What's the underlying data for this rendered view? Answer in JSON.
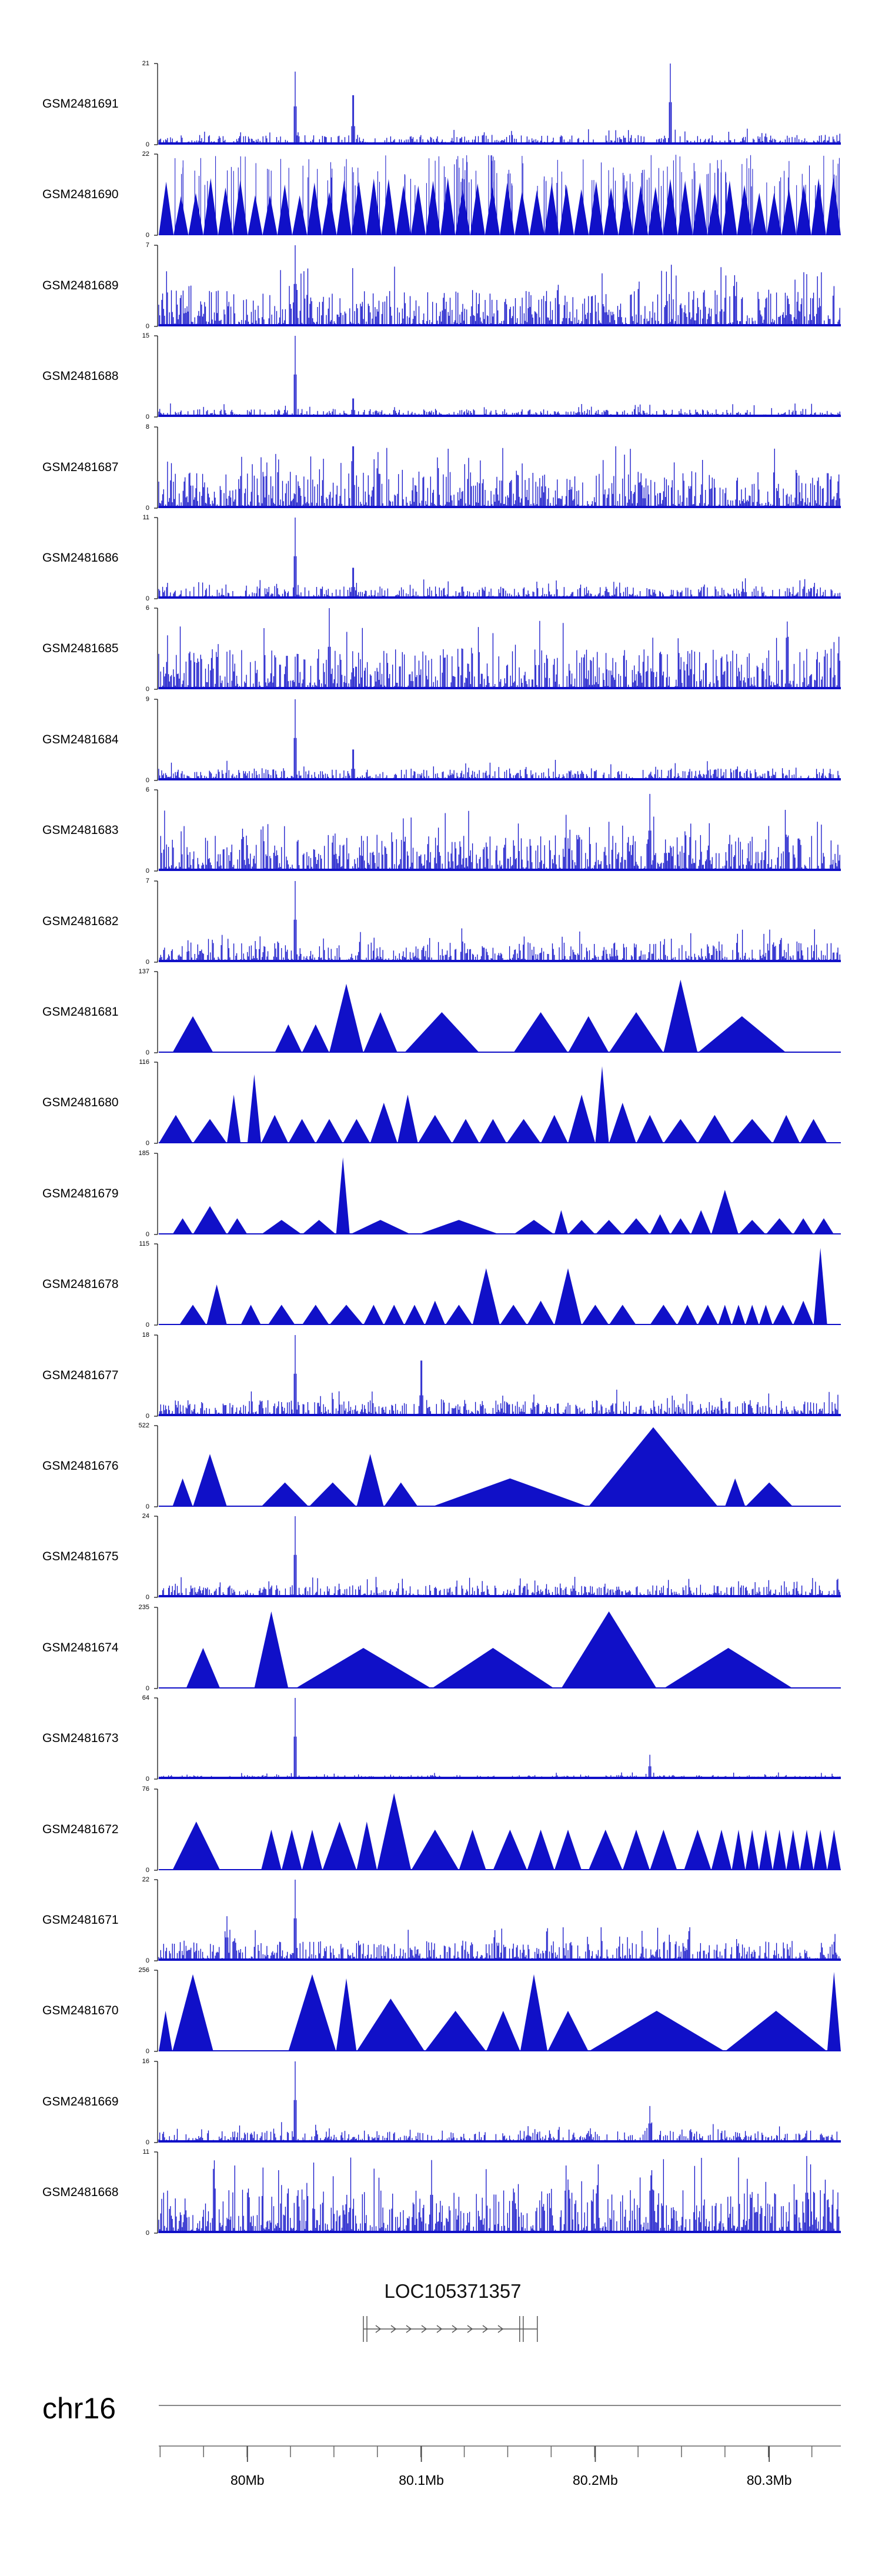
{
  "colors": {
    "signal": "#1010c8",
    "axis": "#000000",
    "gene": "#555555"
  },
  "tracks": [
    {
      "name": "GSM2481691",
      "max": 21,
      "style": "spikes",
      "peaks": [
        [
          0.2,
          0.9
        ],
        [
          0.285,
          0.8
        ],
        [
          0.75,
          1.0
        ]
      ],
      "level": 0.12
    },
    {
      "name": "GSM2481690",
      "max": 22,
      "style": "dense-tri",
      "level": 0.6
    },
    {
      "name": "GSM2481689",
      "max": 7,
      "style": "spikes",
      "peaks": [
        [
          0.2,
          1.0
        ]
      ],
      "level": 0.45
    },
    {
      "name": "GSM2481688",
      "max": 15,
      "style": "spikes",
      "peaks": [
        [
          0.2,
          1.0
        ],
        [
          0.285,
          0.3
        ]
      ],
      "level": 0.1
    },
    {
      "name": "GSM2481687",
      "max": 8,
      "style": "spikes",
      "peaks": [
        [
          0.285,
          1.0
        ]
      ],
      "level": 0.45
    },
    {
      "name": "GSM2481686",
      "max": 11,
      "style": "spikes",
      "peaks": [
        [
          0.2,
          1.0
        ],
        [
          0.285,
          0.5
        ]
      ],
      "level": 0.15
    },
    {
      "name": "GSM2481685",
      "max": 6,
      "style": "spikes",
      "peaks": [
        [
          0.25,
          1.0
        ]
      ],
      "level": 0.5
    },
    {
      "name": "GSM2481684",
      "max": 9,
      "style": "spikes",
      "peaks": [
        [
          0.2,
          1.0
        ],
        [
          0.285,
          0.5
        ]
      ],
      "level": 0.15
    },
    {
      "name": "GSM2481683",
      "max": 6,
      "style": "spikes",
      "peaks": [
        [
          0.72,
          0.95
        ]
      ],
      "level": 0.45
    },
    {
      "name": "GSM2481682",
      "max": 7,
      "style": "spikes",
      "peaks": [
        [
          0.2,
          1.0
        ]
      ],
      "level": 0.25
    },
    {
      "name": "GSM2481681",
      "max": 137,
      "style": "tri",
      "tris": [
        [
          0.02,
          0.08,
          0.45
        ],
        [
          0.17,
          0.21,
          0.35
        ],
        [
          0.21,
          0.25,
          0.35
        ],
        [
          0.25,
          0.3,
          0.85
        ],
        [
          0.3,
          0.35,
          0.5
        ],
        [
          0.36,
          0.47,
          0.5
        ],
        [
          0.52,
          0.6,
          0.5
        ],
        [
          0.6,
          0.66,
          0.45
        ],
        [
          0.66,
          0.74,
          0.5
        ],
        [
          0.74,
          0.79,
          0.9
        ],
        [
          0.79,
          0.92,
          0.45
        ]
      ]
    },
    {
      "name": "GSM2481680",
      "max": 116,
      "style": "tri",
      "tris": [
        [
          0.0,
          0.05,
          0.35
        ],
        [
          0.05,
          0.1,
          0.3
        ],
        [
          0.1,
          0.12,
          0.6
        ],
        [
          0.13,
          0.15,
          0.85
        ],
        [
          0.15,
          0.19,
          0.35
        ],
        [
          0.19,
          0.23,
          0.3
        ],
        [
          0.23,
          0.27,
          0.3
        ],
        [
          0.27,
          0.31,
          0.3
        ],
        [
          0.31,
          0.35,
          0.5
        ],
        [
          0.35,
          0.38,
          0.6
        ],
        [
          0.38,
          0.43,
          0.35
        ],
        [
          0.43,
          0.47,
          0.3
        ],
        [
          0.47,
          0.51,
          0.3
        ],
        [
          0.51,
          0.56,
          0.3
        ],
        [
          0.56,
          0.6,
          0.35
        ],
        [
          0.6,
          0.64,
          0.6
        ],
        [
          0.64,
          0.66,
          0.95
        ],
        [
          0.66,
          0.7,
          0.5
        ],
        [
          0.7,
          0.74,
          0.35
        ],
        [
          0.74,
          0.79,
          0.3
        ],
        [
          0.79,
          0.84,
          0.35
        ],
        [
          0.84,
          0.9,
          0.3
        ],
        [
          0.9,
          0.94,
          0.35
        ],
        [
          0.94,
          0.98,
          0.3
        ]
      ]
    },
    {
      "name": "GSM2481679",
      "max": 185,
      "style": "tri",
      "tris": [
        [
          0.02,
          0.05,
          0.2
        ],
        [
          0.05,
          0.1,
          0.35
        ],
        [
          0.1,
          0.13,
          0.2
        ],
        [
          0.15,
          0.21,
          0.18
        ],
        [
          0.21,
          0.26,
          0.18
        ],
        [
          0.26,
          0.28,
          0.95
        ],
        [
          0.28,
          0.37,
          0.18
        ],
        [
          0.38,
          0.5,
          0.18
        ],
        [
          0.52,
          0.58,
          0.18
        ],
        [
          0.58,
          0.6,
          0.3
        ],
        [
          0.6,
          0.64,
          0.18
        ],
        [
          0.64,
          0.68,
          0.18
        ],
        [
          0.68,
          0.72,
          0.2
        ],
        [
          0.72,
          0.75,
          0.25
        ],
        [
          0.75,
          0.78,
          0.2
        ],
        [
          0.78,
          0.81,
          0.3
        ],
        [
          0.81,
          0.85,
          0.55
        ],
        [
          0.85,
          0.89,
          0.18
        ],
        [
          0.89,
          0.93,
          0.2
        ],
        [
          0.93,
          0.96,
          0.2
        ],
        [
          0.96,
          0.99,
          0.2
        ]
      ]
    },
    {
      "name": "GSM2481678",
      "max": 115,
      "style": "tri",
      "tris": [
        [
          0.03,
          0.07,
          0.25
        ],
        [
          0.07,
          0.1,
          0.5
        ],
        [
          0.12,
          0.15,
          0.25
        ],
        [
          0.16,
          0.2,
          0.25
        ],
        [
          0.21,
          0.25,
          0.25
        ],
        [
          0.25,
          0.3,
          0.25
        ],
        [
          0.3,
          0.33,
          0.25
        ],
        [
          0.33,
          0.36,
          0.25
        ],
        [
          0.36,
          0.39,
          0.25
        ],
        [
          0.39,
          0.42,
          0.3
        ],
        [
          0.42,
          0.46,
          0.25
        ],
        [
          0.46,
          0.5,
          0.7
        ],
        [
          0.5,
          0.54,
          0.25
        ],
        [
          0.54,
          0.58,
          0.3
        ],
        [
          0.58,
          0.62,
          0.7
        ],
        [
          0.62,
          0.66,
          0.25
        ],
        [
          0.66,
          0.7,
          0.25
        ],
        [
          0.72,
          0.76,
          0.25
        ],
        [
          0.76,
          0.79,
          0.25
        ],
        [
          0.79,
          0.82,
          0.25
        ],
        [
          0.82,
          0.84,
          0.25
        ],
        [
          0.84,
          0.86,
          0.25
        ],
        [
          0.86,
          0.88,
          0.25
        ],
        [
          0.88,
          0.9,
          0.25
        ],
        [
          0.9,
          0.93,
          0.25
        ],
        [
          0.93,
          0.96,
          0.3
        ],
        [
          0.96,
          0.98,
          0.95
        ]
      ]
    },
    {
      "name": "GSM2481677",
      "max": 18,
      "style": "spikes",
      "peaks": [
        [
          0.2,
          1.0
        ],
        [
          0.385,
          0.9
        ]
      ],
      "level": 0.2
    },
    {
      "name": "GSM2481676",
      "max": 522,
      "style": "tri",
      "tris": [
        [
          0.02,
          0.05,
          0.35
        ],
        [
          0.05,
          0.1,
          0.65
        ],
        [
          0.15,
          0.22,
          0.3
        ],
        [
          0.22,
          0.29,
          0.3
        ],
        [
          0.29,
          0.33,
          0.65
        ],
        [
          0.33,
          0.38,
          0.3
        ],
        [
          0.4,
          0.63,
          0.35
        ],
        [
          0.63,
          0.82,
          0.98
        ],
        [
          0.83,
          0.86,
          0.35
        ],
        [
          0.86,
          0.93,
          0.3
        ]
      ]
    },
    {
      "name": "GSM2481675",
      "max": 24,
      "style": "spikes",
      "peaks": [
        [
          0.2,
          1.0
        ]
      ],
      "level": 0.15
    },
    {
      "name": "GSM2481674",
      "max": 235,
      "style": "tri",
      "tris": [
        [
          0.04,
          0.09,
          0.5
        ],
        [
          0.14,
          0.19,
          0.95
        ],
        [
          0.2,
          0.4,
          0.5
        ],
        [
          0.4,
          0.58,
          0.5
        ],
        [
          0.59,
          0.73,
          0.95
        ],
        [
          0.74,
          0.93,
          0.5
        ]
      ]
    },
    {
      "name": "GSM2481673",
      "max": 64,
      "style": "spikes",
      "peaks": [
        [
          0.2,
          1.0
        ],
        [
          0.72,
          0.3
        ]
      ],
      "level": 0.05
    },
    {
      "name": "GSM2481672",
      "max": 76,
      "style": "tri",
      "tris": [
        [
          0.02,
          0.09,
          0.6
        ],
        [
          0.15,
          0.18,
          0.5
        ],
        [
          0.18,
          0.21,
          0.5
        ],
        [
          0.21,
          0.24,
          0.5
        ],
        [
          0.24,
          0.29,
          0.6
        ],
        [
          0.29,
          0.32,
          0.6
        ],
        [
          0.32,
          0.37,
          0.95
        ],
        [
          0.37,
          0.44,
          0.5
        ],
        [
          0.44,
          0.48,
          0.5
        ],
        [
          0.49,
          0.54,
          0.5
        ],
        [
          0.54,
          0.58,
          0.5
        ],
        [
          0.58,
          0.62,
          0.5
        ],
        [
          0.63,
          0.68,
          0.5
        ],
        [
          0.68,
          0.72,
          0.5
        ],
        [
          0.72,
          0.76,
          0.5
        ],
        [
          0.77,
          0.81,
          0.5
        ],
        [
          0.81,
          0.84,
          0.5
        ],
        [
          0.84,
          0.86,
          0.5
        ],
        [
          0.86,
          0.88,
          0.5
        ],
        [
          0.88,
          0.9,
          0.5
        ],
        [
          0.9,
          0.92,
          0.5
        ],
        [
          0.92,
          0.94,
          0.5
        ],
        [
          0.94,
          0.96,
          0.5
        ],
        [
          0.96,
          0.98,
          0.5
        ],
        [
          0.98,
          1.0,
          0.5
        ]
      ]
    },
    {
      "name": "GSM2481671",
      "max": 22,
      "style": "spikes",
      "peaks": [
        [
          0.2,
          1.0
        ],
        [
          0.1,
          0.55
        ]
      ],
      "level": 0.25
    },
    {
      "name": "GSM2481670",
      "max": 256,
      "style": "tri",
      "tris": [
        [
          0.0,
          0.02,
          0.5
        ],
        [
          0.02,
          0.08,
          0.95
        ],
        [
          0.19,
          0.26,
          0.95
        ],
        [
          0.26,
          0.29,
          0.9
        ],
        [
          0.29,
          0.39,
          0.65
        ],
        [
          0.39,
          0.48,
          0.5
        ],
        [
          0.48,
          0.53,
          0.5
        ],
        [
          0.53,
          0.57,
          0.95
        ],
        [
          0.57,
          0.63,
          0.5
        ],
        [
          0.63,
          0.83,
          0.5
        ],
        [
          0.83,
          0.98,
          0.5
        ],
        [
          0.98,
          1.0,
          0.98
        ]
      ]
    },
    {
      "name": "GSM2481669",
      "max": 16,
      "style": "spikes",
      "peaks": [
        [
          0.2,
          1.0
        ],
        [
          0.72,
          0.45
        ]
      ],
      "level": 0.15
    },
    {
      "name": "GSM2481668",
      "max": 11,
      "style": "spikes",
      "peaks": [
        [
          0.4,
          0.9
        ],
        [
          0.95,
          0.95
        ]
      ],
      "level": 0.55
    }
  ],
  "gene": {
    "name": "LOC105371357",
    "start_frac": 0.3,
    "end_frac": 0.555
  },
  "axis": {
    "chrom": "chr16",
    "ticks": [
      {
        "frac": 0.13,
        "label": "80Mb"
      },
      {
        "frac": 0.385,
        "label": "80.1Mb"
      },
      {
        "frac": 0.64,
        "label": "80.2Mb"
      },
      {
        "frac": 0.895,
        "label": "80.3Mb"
      }
    ],
    "minor_frac_step": 0.0637
  },
  "chart_data": {
    "type": "area",
    "title": "",
    "series": [
      {
        "name": "GSM2481691",
        "ylim": [
          0,
          21
        ]
      },
      {
        "name": "GSM2481690",
        "ylim": [
          0,
          22
        ]
      },
      {
        "name": "GSM2481689",
        "ylim": [
          0,
          7
        ]
      },
      {
        "name": "GSM2481688",
        "ylim": [
          0,
          15
        ]
      },
      {
        "name": "GSM2481687",
        "ylim": [
          0,
          8
        ]
      },
      {
        "name": "GSM2481686",
        "ylim": [
          0,
          11
        ]
      },
      {
        "name": "GSM2481685",
        "ylim": [
          0,
          6
        ]
      },
      {
        "name": "GSM2481684",
        "ylim": [
          0,
          9
        ]
      },
      {
        "name": "GSM2481683",
        "ylim": [
          0,
          6
        ]
      },
      {
        "name": "GSM2481682",
        "ylim": [
          0,
          7
        ]
      },
      {
        "name": "GSM2481681",
        "ylim": [
          0,
          137
        ]
      },
      {
        "name": "GSM2481680",
        "ylim": [
          0,
          116
        ]
      },
      {
        "name": "GSM2481679",
        "ylim": [
          0,
          185
        ]
      },
      {
        "name": "GSM2481678",
        "ylim": [
          0,
          115
        ]
      },
      {
        "name": "GSM2481677",
        "ylim": [
          0,
          18
        ]
      },
      {
        "name": "GSM2481676",
        "ylim": [
          0,
          522
        ]
      },
      {
        "name": "GSM2481675",
        "ylim": [
          0,
          24
        ]
      },
      {
        "name": "GSM2481674",
        "ylim": [
          0,
          235
        ]
      },
      {
        "name": "GSM2481673",
        "ylim": [
          0,
          64
        ]
      },
      {
        "name": "GSM2481672",
        "ylim": [
          0,
          76
        ]
      },
      {
        "name": "GSM2481671",
        "ylim": [
          0,
          22
        ]
      },
      {
        "name": "GSM2481670",
        "ylim": [
          0,
          256
        ]
      },
      {
        "name": "GSM2481669",
        "ylim": [
          0,
          16
        ]
      },
      {
        "name": "GSM2481668",
        "ylim": [
          0,
          11
        ]
      }
    ],
    "xlabel": "chr16",
    "ylabel": "",
    "xticks": [
      "80Mb",
      "80.1Mb",
      "80.2Mb",
      "80.3Mb"
    ],
    "gene_annotation": "LOC105371357"
  }
}
